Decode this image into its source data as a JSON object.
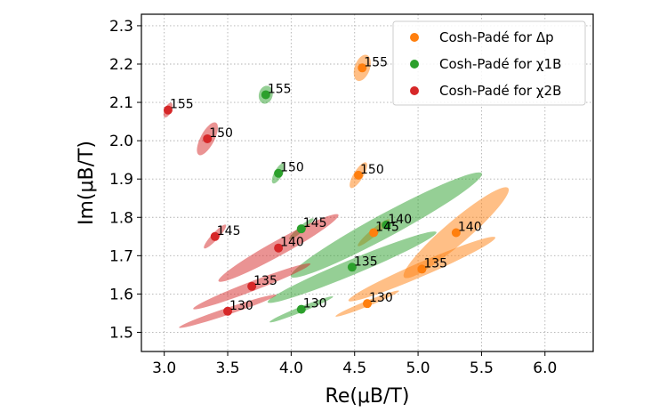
{
  "chart_data": {
    "type": "scatter",
    "xlabel": "Re(μB/T)",
    "ylabel": "Im(μB/T)",
    "xlim": [
      2.82,
      6.38
    ],
    "ylim": [
      1.45,
      2.33
    ],
    "xticks": [
      "3.0",
      "3.5",
      "4.0",
      "4.5",
      "5.0",
      "5.5",
      "6.0"
    ],
    "yticks": [
      "1.5",
      "1.6",
      "1.7",
      "1.8",
      "1.9",
      "2.0",
      "2.1",
      "2.2",
      "2.3"
    ],
    "grid": true,
    "legend_position": "top-right",
    "series": [
      {
        "name": "Cosh-Padé for Δp",
        "color": "#ff7f0e",
        "points": [
          {
            "label": "155",
            "x": 4.56,
            "y": 2.19,
            "ex": 0.12,
            "ey": 0.11
          },
          {
            "label": "150",
            "x": 4.53,
            "y": 1.91,
            "ex": 0.13,
            "ey": 0.07
          },
          {
            "label": "145",
            "x": 4.65,
            "y": 1.76,
            "ex": 0.18,
            "ey": 0.05
          },
          {
            "label": "140",
            "x": 5.3,
            "y": 1.76,
            "ex": 0.6,
            "ey": 0.17
          },
          {
            "label": "135",
            "x": 5.03,
            "y": 1.665,
            "ex": 0.7,
            "ey": 0.1
          },
          {
            "label": "130",
            "x": 4.6,
            "y": 1.575,
            "ex": 0.3,
            "ey": 0.04
          }
        ]
      },
      {
        "name": "Cosh-Padé for χ1B",
        "color": "#2ca02c",
        "points": [
          {
            "label": "155",
            "x": 3.8,
            "y": 2.12,
            "ex": 0.08,
            "ey": 0.1
          },
          {
            "label": "150",
            "x": 3.9,
            "y": 1.915,
            "ex": 0.1,
            "ey": 0.06
          },
          {
            "label": "145",
            "x": 4.08,
            "y": 1.77,
            "ex": 0.14,
            "ey": 0.04
          },
          {
            "label": "140",
            "x": 4.75,
            "y": 1.78,
            "ex": 0.95,
            "ey": 0.17
          },
          {
            "label": "135",
            "x": 4.48,
            "y": 1.67,
            "ex": 0.8,
            "ey": 0.11
          },
          {
            "label": "130",
            "x": 4.08,
            "y": 1.56,
            "ex": 0.3,
            "ey": 0.04
          }
        ]
      },
      {
        "name": "Cosh-Padé for χ2B",
        "color": "#d62728",
        "points": [
          {
            "label": "155",
            "x": 3.03,
            "y": 2.08,
            "ex": 0.07,
            "ey": 0.05
          },
          {
            "label": "150",
            "x": 3.34,
            "y": 2.005,
            "ex": 0.16,
            "ey": 0.1
          },
          {
            "label": "145",
            "x": 3.4,
            "y": 1.75,
            "ex": 0.14,
            "ey": 0.05
          },
          {
            "label": "140",
            "x": 3.9,
            "y": 1.72,
            "ex": 0.6,
            "ey": 0.11
          },
          {
            "label": "135",
            "x": 3.69,
            "y": 1.62,
            "ex": 0.55,
            "ey": 0.07
          },
          {
            "label": "130",
            "x": 3.5,
            "y": 1.555,
            "ex": 0.45,
            "ey": 0.05
          }
        ]
      }
    ]
  }
}
